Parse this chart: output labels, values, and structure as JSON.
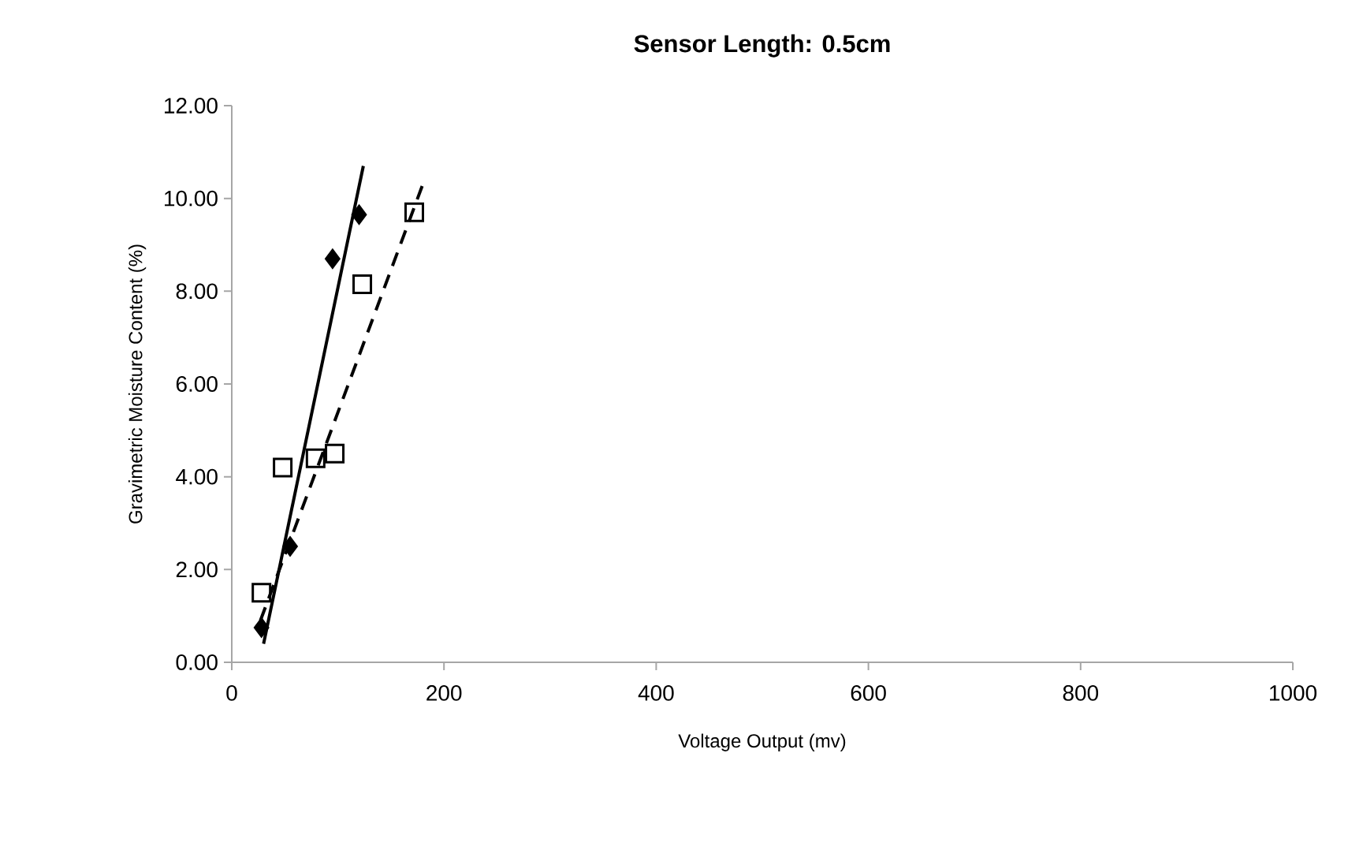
{
  "chart_data": {
    "type": "scatter",
    "title": "**Sensor Length: 0.5cm**",
    "xlabel": "Voltage Output (mv)",
    "ylabel": "Gravimetric Moisture Content (%)",
    "xlim": [
      0,
      1000
    ],
    "xticks": [
      0,
      200,
      400,
      600,
      800,
      1000
    ],
    "ylim": [
      0,
      12
    ],
    "yticks": [
      {
        "value": 0,
        "label": "0.00"
      },
      {
        "value": 2,
        "label": "2.00"
      },
      {
        "value": 4,
        "label": "4.00"
      },
      {
        "value": 6,
        "label": "6.00"
      },
      {
        "value": 8,
        "label": "8.00"
      },
      {
        "value": 10,
        "label": "10.00"
      },
      {
        "value": 12,
        "label": "12.00"
      }
    ],
    "grid": false,
    "series": [
      {
        "marker": "diamond",
        "color": "#000000",
        "x": [
          28,
          55,
          95,
          120
        ],
        "values": [
          0.75,
          2.5,
          8.7,
          9.65
        ]
      },
      {
        "marker": "square",
        "color": "#000000",
        "x": [
          28,
          48,
          79,
          97,
          123,
          172
        ],
        "values": [
          1.5,
          4.2,
          4.4,
          4.5,
          8.15,
          9.7
        ]
      },
      {
        "type": "line",
        "line_style": "solid",
        "color": "#000000",
        "x": [
          30,
          124
        ],
        "values": [
          0.4,
          10.7
        ]
      },
      {
        "type": "line",
        "line_style": "dashed",
        "color": "#000000",
        "x": [
          27,
          180
        ],
        "values": [
          0.9,
          10.3
        ]
      }
    ]
  }
}
